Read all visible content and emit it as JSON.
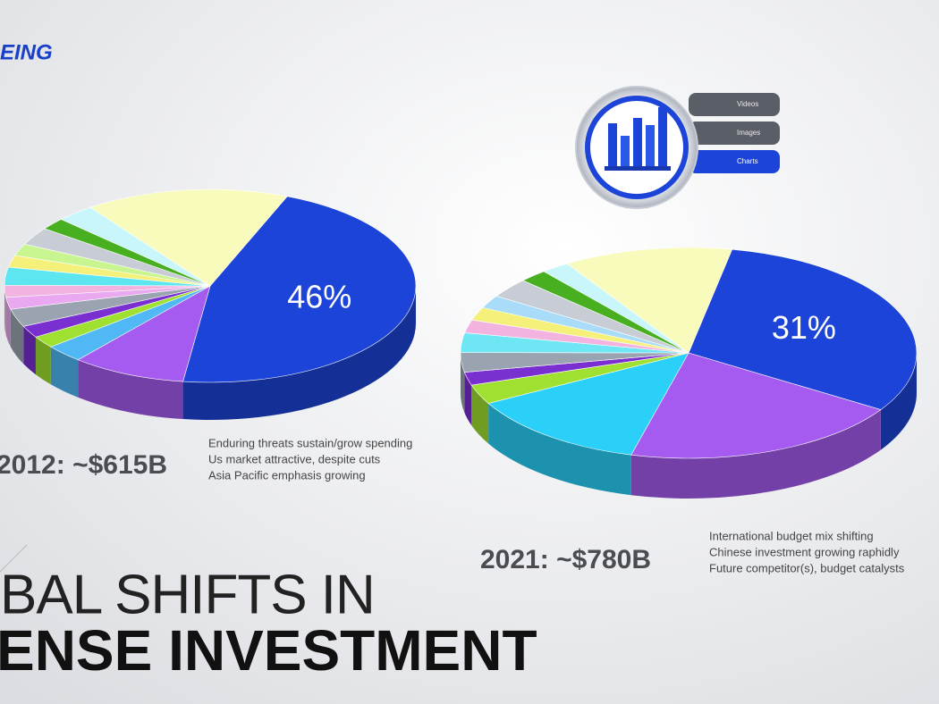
{
  "logo": "EING",
  "menu": [
    "Videos",
    "Images",
    "Charts"
  ],
  "headline": [
    "BAL SHIFTS IN",
    "ENSE INVESTMENT"
  ],
  "chart_data": [
    {
      "type": "pie",
      "title": "2012: ~$615B",
      "notes": [
        "Enduring threats sustain/grow spending",
        "Us market attractive, despite cuts",
        "Asia Pacific emphasis growing"
      ],
      "values": [
        46,
        9,
        3,
        2,
        2,
        3,
        2,
        2,
        3,
        2,
        2,
        3,
        2,
        3,
        16
      ],
      "value_labels": [
        "46%",
        null,
        null,
        null,
        null,
        null,
        null,
        null,
        null,
        null,
        null,
        null,
        null,
        null,
        null
      ],
      "colors": [
        "#1d44d8",
        "#a55bf0",
        "#4fb8f5",
        "#9fe030",
        "#7a2fd0",
        "#9aa4b0",
        "#e9a8f0",
        "#f2b3e0",
        "#5ee6f0",
        "#f5f07a",
        "#c8f590",
        "#c8ccd4",
        "#48b020",
        "#c8f6fa",
        "#f8fbbc"
      ]
    },
    {
      "type": "pie",
      "title": "2021: ~$780B",
      "notes": [
        "International budget mix shifting",
        "Chinese investment growing raphidly",
        "Future competitor(s), budget catalysts"
      ],
      "values": [
        31,
        20,
        13,
        3,
        2,
        3,
        3,
        2,
        2,
        2,
        3,
        2,
        2,
        12
      ],
      "value_labels": [
        "31%",
        null,
        null,
        null,
        null,
        null,
        null,
        null,
        null,
        null,
        null,
        null,
        null,
        null
      ],
      "colors": [
        "#1d44d8",
        "#a55bf0",
        "#2ad0f8",
        "#9fe030",
        "#7a2fd0",
        "#9aa4b0",
        "#6fe6f4",
        "#f2b3e0",
        "#f5f07a",
        "#a8dcf8",
        "#c8ccd4",
        "#48b020",
        "#c8f6fa",
        "#f8fbbc"
      ]
    }
  ]
}
